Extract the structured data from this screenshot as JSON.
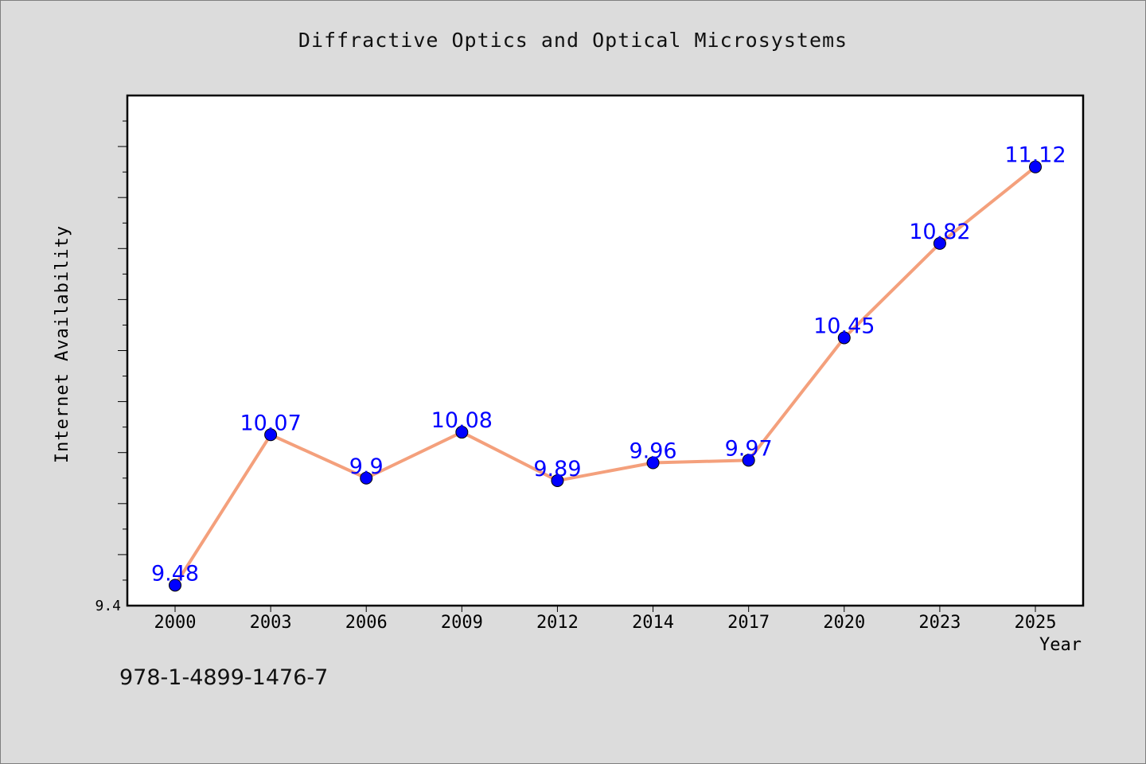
{
  "chart_data": {
    "type": "line",
    "title": "Diffractive Optics and Optical Microsystems",
    "xlabel": "Year",
    "ylabel": "Internet Availability",
    "categories": [
      "2000",
      "2003",
      "2006",
      "2009",
      "2012",
      "2014",
      "2017",
      "2020",
      "2023",
      "2025"
    ],
    "series": [
      {
        "values": [
          9.48,
          10.07,
          9.9,
          10.08,
          9.89,
          9.96,
          9.97,
          10.45,
          10.82,
          11.12
        ]
      }
    ],
    "data_labels": [
      "9.48",
      "10.07",
      "9.9",
      "10.08",
      "9.89",
      "9.96",
      "9.97",
      "10.45",
      "10.82",
      "11.12"
    ],
    "ylim": [
      9.4,
      11.4
    ],
    "y_tick_labels": [
      "9.4"
    ],
    "grid": false,
    "legend": "none",
    "colors": {
      "line": "#f4a07c",
      "marker": "#0000ff",
      "label": "#0000ff",
      "background": "#dcdcdc",
      "plot_bg": "#ffffff"
    }
  },
  "footer": {
    "isbn": "978-1-4899-1476-7"
  }
}
